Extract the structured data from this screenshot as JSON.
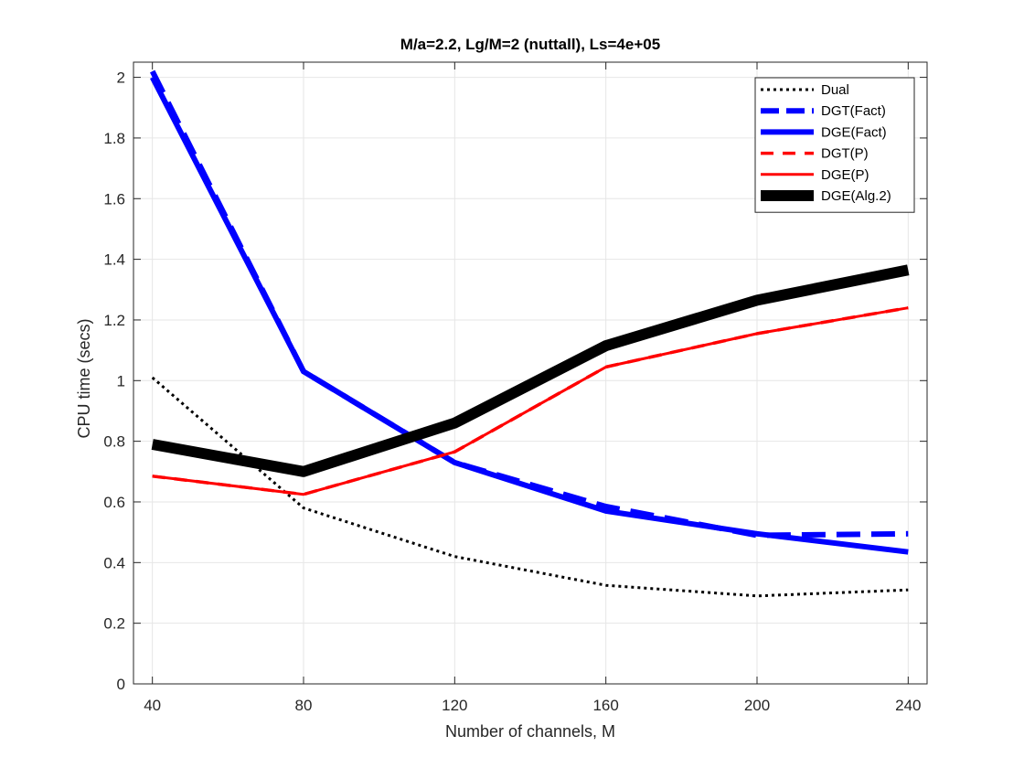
{
  "chart_data": {
    "type": "line",
    "title": "M/a=2.2, Lg/M=2 (nuttall), Ls=4e+05",
    "xlabel": "Number of channels, M",
    "ylabel": "CPU time (secs)",
    "x": [
      40,
      80,
      120,
      160,
      200,
      240
    ],
    "xlim": [
      35,
      245
    ],
    "ylim": [
      0,
      2.05
    ],
    "xticks": [
      "40",
      "80",
      "120",
      "160",
      "200",
      "240"
    ],
    "yticks": [
      "0",
      "0.2",
      "0.4",
      "0.6",
      "0.8",
      "1",
      "1.2",
      "1.4",
      "1.6",
      "1.8",
      "2"
    ],
    "grid": true,
    "legend_position": "top-right",
    "series": [
      {
        "name": "Dual",
        "values": [
          1.01,
          0.58,
          0.42,
          0.325,
          0.29,
          0.31
        ],
        "color": "#000000",
        "style": "dotted",
        "width": "thin"
      },
      {
        "name": "DGT(Fact)",
        "values": [
          2.02,
          1.03,
          0.73,
          0.585,
          0.49,
          0.495
        ],
        "color": "#0000ff",
        "style": "dashed",
        "width": "thick"
      },
      {
        "name": "DGE(Fact)",
        "values": [
          2.0,
          1.03,
          0.73,
          0.57,
          0.495,
          0.435
        ],
        "color": "#0000ff",
        "style": "solid",
        "width": "thick"
      },
      {
        "name": "DGT(P)",
        "values": [
          0.685,
          0.625,
          0.765,
          1.045,
          1.155,
          1.24
        ],
        "color": "#ff0000",
        "style": "dashed",
        "width": "medium"
      },
      {
        "name": "DGE(P)",
        "values": [
          0.685,
          0.625,
          0.765,
          1.045,
          1.155,
          1.24
        ],
        "color": "#ff0000",
        "style": "solid",
        "width": "thin"
      },
      {
        "name": "DGE(Alg.2)",
        "values": [
          0.79,
          0.7,
          0.86,
          1.115,
          1.265,
          1.365
        ],
        "color": "#000000",
        "style": "solid",
        "width": "heavy"
      }
    ]
  }
}
